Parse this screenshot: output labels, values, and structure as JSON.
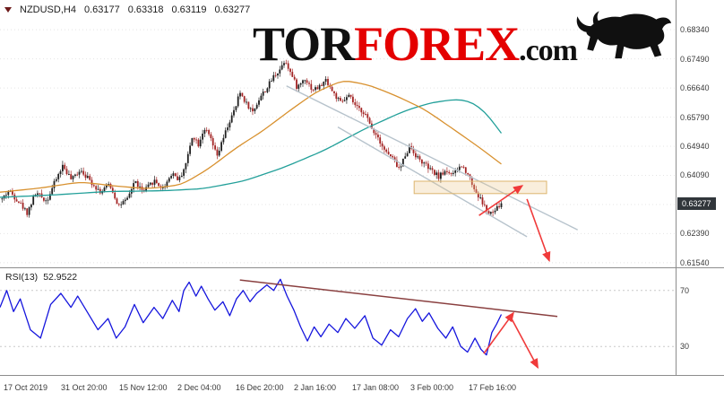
{
  "header": {
    "symbol": "NZDUSD,H4",
    "open": "0.63177",
    "high": "0.63318",
    "low": "0.63119",
    "close": "0.63277"
  },
  "logo": {
    "tor": "TOR",
    "forex": "FOREX",
    "dotcom": ".com"
  },
  "rsi_label": {
    "name": "RSI(13)",
    "value": "52.9522"
  },
  "colors": {
    "up_candle": "#1f1f1f",
    "down_candle": "#a32424",
    "ma_fast": "#d8912f",
    "ma_slow": "#23a09a",
    "channel": "#b7c3cc",
    "box_fill": "rgba(235,200,140,0.30)",
    "box_border": "#ddb56e",
    "arrow": "#f03a3a",
    "rsi_line": "#1515dd",
    "rsi_trend": "#8a4040",
    "grid": "#e4e4e4",
    "level_line": "#c9c9c9",
    "axis_text": "#3a3a3a",
    "separator": "#8d8d8d",
    "price_tag_bg": "#31363b",
    "price_tag_text": "#ffffff",
    "logo_red": "#e40000",
    "logo_black": "#101010",
    "header_text": "#1c1c1c"
  },
  "chart_data": [
    {
      "type": "candlestick",
      "symbol": "NZDUSD",
      "timeframe": "H4",
      "title": "NZDUSD,H4",
      "current": {
        "open": 0.63177,
        "high": 0.63318,
        "low": 0.63119,
        "close": 0.63277
      },
      "current_price_label": "0.63277",
      "ylim": [
        0.61407,
        0.69207
      ],
      "y_ticks": [
        "0.68340",
        "0.67490",
        "0.66640",
        "0.65790",
        "0.64940",
        "0.64090",
        "0.63240",
        "0.62390",
        "0.61540"
      ],
      "x_labels": [
        {
          "text": "17 Oct 2019",
          "f": 0.0027
        },
        {
          "text": "31 Oct 20:00",
          "f": 0.0875
        },
        {
          "text": "15 Nov 12:00",
          "f": 0.1737
        },
        {
          "text": "2 Dec 04:00",
          "f": 0.26
        },
        {
          "text": "16 Dec 20:00",
          "f": 0.3462
        },
        {
          "text": "2 Jan 16:00",
          "f": 0.4324
        },
        {
          "text": "17 Jan 08:00",
          "f": 0.5186
        },
        {
          "text": "3 Feb 00:00",
          "f": 0.6049
        },
        {
          "text": "17 Feb 16:00",
          "f": 0.6911
        }
      ],
      "candles_span": [
        0.003,
        0.742
      ],
      "candle_count": 240,
      "price_path": [
        [
          0.003,
          0.634
        ],
        [
          0.013,
          0.6365
        ],
        [
          0.029,
          0.633
        ],
        [
          0.04,
          0.63
        ],
        [
          0.053,
          0.6358
        ],
        [
          0.069,
          0.6335
        ],
        [
          0.082,
          0.6393
        ],
        [
          0.093,
          0.6438
        ],
        [
          0.106,
          0.6395
        ],
        [
          0.119,
          0.6428
        ],
        [
          0.133,
          0.6394
        ],
        [
          0.149,
          0.636
        ],
        [
          0.162,
          0.6385
        ],
        [
          0.175,
          0.6322
        ],
        [
          0.188,
          0.6335
        ],
        [
          0.199,
          0.6393
        ],
        [
          0.212,
          0.636
        ],
        [
          0.228,
          0.6394
        ],
        [
          0.241,
          0.637
        ],
        [
          0.255,
          0.6418
        ],
        [
          0.265,
          0.6395
        ],
        [
          0.276,
          0.6448
        ],
        [
          0.285,
          0.6528
        ],
        [
          0.294,
          0.65
        ],
        [
          0.302,
          0.6548
        ],
        [
          0.312,
          0.6515
        ],
        [
          0.321,
          0.6462
        ],
        [
          0.329,
          0.6508
        ],
        [
          0.338,
          0.6558
        ],
        [
          0.348,
          0.6602
        ],
        [
          0.355,
          0.6652
        ],
        [
          0.365,
          0.6618
        ],
        [
          0.374,
          0.6594
        ],
        [
          0.385,
          0.6638
        ],
        [
          0.395,
          0.6663
        ],
        [
          0.405,
          0.6698
        ],
        [
          0.414,
          0.6718
        ],
        [
          0.422,
          0.6748
        ],
        [
          0.431,
          0.6704
        ],
        [
          0.44,
          0.6664
        ],
        [
          0.451,
          0.6694
        ],
        [
          0.462,
          0.666
        ],
        [
          0.472,
          0.6665
        ],
        [
          0.483,
          0.6688
        ],
        [
          0.493,
          0.665
        ],
        [
          0.504,
          0.662
        ],
        [
          0.517,
          0.664
        ],
        [
          0.528,
          0.6605
        ],
        [
          0.539,
          0.6594
        ],
        [
          0.549,
          0.655
        ],
        [
          0.56,
          0.652
        ],
        [
          0.57,
          0.648
        ],
        [
          0.581,
          0.6458
        ],
        [
          0.592,
          0.6425
        ],
        [
          0.599,
          0.6468
        ],
        [
          0.607,
          0.6494
        ],
        [
          0.618,
          0.646
        ],
        [
          0.629,
          0.644
        ],
        [
          0.639,
          0.642
        ],
        [
          0.65,
          0.6405
        ],
        [
          0.66,
          0.6424
        ],
        [
          0.671,
          0.641
        ],
        [
          0.682,
          0.6438
        ],
        [
          0.692,
          0.6418
        ],
        [
          0.703,
          0.6365
        ],
        [
          0.714,
          0.633
        ],
        [
          0.724,
          0.6294
        ],
        [
          0.732,
          0.6304
        ],
        [
          0.742,
          0.63277
        ]
      ],
      "ma_fast": [
        [
          0.0,
          0.636
        ],
        [
          0.06,
          0.6372
        ],
        [
          0.12,
          0.639
        ],
        [
          0.17,
          0.6378
        ],
        [
          0.22,
          0.637
        ],
        [
          0.27,
          0.6382
        ],
        [
          0.31,
          0.643
        ],
        [
          0.35,
          0.649
        ],
        [
          0.39,
          0.654
        ],
        [
          0.43,
          0.66
        ],
        [
          0.47,
          0.6655
        ],
        [
          0.51,
          0.6688
        ],
        [
          0.55,
          0.667
        ],
        [
          0.59,
          0.6638
        ],
        [
          0.63,
          0.66
        ],
        [
          0.67,
          0.6545
        ],
        [
          0.71,
          0.649
        ],
        [
          0.742,
          0.6442
        ]
      ],
      "ma_slow": [
        [
          0.0,
          0.6345
        ],
        [
          0.08,
          0.6352
        ],
        [
          0.16,
          0.6362
        ],
        [
          0.24,
          0.6364
        ],
        [
          0.3,
          0.637
        ],
        [
          0.36,
          0.6392
        ],
        [
          0.42,
          0.6432
        ],
        [
          0.48,
          0.6482
        ],
        [
          0.54,
          0.6545
        ],
        [
          0.6,
          0.6598
        ],
        [
          0.64,
          0.6622
        ],
        [
          0.68,
          0.6632
        ],
        [
          0.7,
          0.6622
        ],
        [
          0.72,
          0.6592
        ],
        [
          0.742,
          0.6532
        ]
      ],
      "channel_upper": [
        [
          0.424,
          0.667
        ],
        [
          0.855,
          0.625
        ]
      ],
      "channel_lower": [
        [
          0.5,
          0.655
        ],
        [
          0.78,
          0.623
        ]
      ],
      "highlight_box": {
        "f1": 0.613,
        "f2": 0.809,
        "p_top": 0.6392,
        "p_bottom": 0.6356
      },
      "arrows": [
        {
          "from": [
            0.709,
            0.6292
          ],
          "to": [
            0.773,
            0.6379
          ],
          "dir": "up"
        },
        {
          "from": [
            0.78,
            0.634
          ],
          "to": [
            0.813,
            0.616
          ],
          "dir": "down"
        }
      ]
    },
    {
      "type": "line",
      "name": "RSI(13)",
      "period": 13,
      "value": 52.9522,
      "levels": [
        70,
        30
      ],
      "ylim": [
        0,
        100
      ],
      "view_range": [
        9.7,
        85.9
      ],
      "points": [
        [
          0.0,
          58
        ],
        [
          0.01,
          70
        ],
        [
          0.02,
          55
        ],
        [
          0.03,
          64
        ],
        [
          0.045,
          42
        ],
        [
          0.06,
          36
        ],
        [
          0.075,
          60
        ],
        [
          0.09,
          68
        ],
        [
          0.105,
          58
        ],
        [
          0.115,
          66
        ],
        [
          0.13,
          54
        ],
        [
          0.145,
          42
        ],
        [
          0.16,
          50
        ],
        [
          0.172,
          36
        ],
        [
          0.185,
          44
        ],
        [
          0.199,
          60
        ],
        [
          0.212,
          47
        ],
        [
          0.228,
          58
        ],
        [
          0.241,
          50
        ],
        [
          0.255,
          63
        ],
        [
          0.265,
          55
        ],
        [
          0.272,
          70
        ],
        [
          0.28,
          76
        ],
        [
          0.29,
          66
        ],
        [
          0.298,
          73
        ],
        [
          0.308,
          64
        ],
        [
          0.318,
          56
        ],
        [
          0.33,
          62
        ],
        [
          0.34,
          52
        ],
        [
          0.35,
          64
        ],
        [
          0.36,
          70
        ],
        [
          0.37,
          62
        ],
        [
          0.38,
          68
        ],
        [
          0.395,
          74
        ],
        [
          0.405,
          70
        ],
        [
          0.415,
          78
        ],
        [
          0.425,
          66
        ],
        [
          0.435,
          56
        ],
        [
          0.445,
          44
        ],
        [
          0.455,
          34
        ],
        [
          0.465,
          44
        ],
        [
          0.475,
          37
        ],
        [
          0.487,
          46
        ],
        [
          0.5,
          40
        ],
        [
          0.512,
          50
        ],
        [
          0.525,
          43
        ],
        [
          0.54,
          52
        ],
        [
          0.552,
          36
        ],
        [
          0.565,
          31
        ],
        [
          0.578,
          42
        ],
        [
          0.59,
          37
        ],
        [
          0.603,
          50
        ],
        [
          0.615,
          57
        ],
        [
          0.625,
          48
        ],
        [
          0.635,
          54
        ],
        [
          0.648,
          43
        ],
        [
          0.66,
          36
        ],
        [
          0.67,
          44
        ],
        [
          0.682,
          30
        ],
        [
          0.692,
          26
        ],
        [
          0.703,
          36
        ],
        [
          0.712,
          28
        ],
        [
          0.72,
          24
        ],
        [
          0.728,
          40
        ],
        [
          0.735,
          46
        ],
        [
          0.742,
          52.95
        ]
      ],
      "trendline": [
        [
          0.355,
          77.5
        ],
        [
          0.825,
          51.5
        ]
      ],
      "arrows": [
        {
          "from": [
            0.716,
            25
          ],
          "to": [
            0.76,
            54
          ],
          "dir": "up"
        },
        {
          "from": [
            0.756,
            51
          ],
          "to": [
            0.796,
            15
          ],
          "dir": "down"
        }
      ]
    }
  ]
}
